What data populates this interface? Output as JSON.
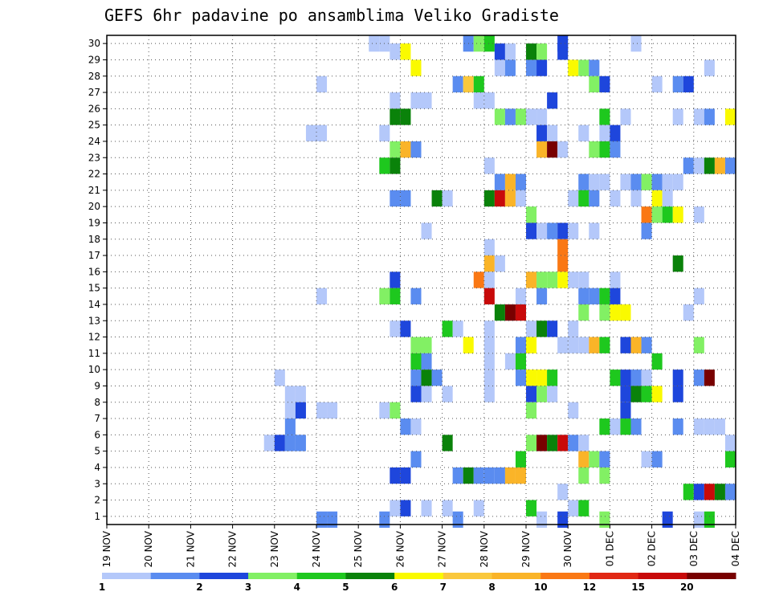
{
  "chart_data": {
    "type": "heatmap",
    "title": "GEFS 6hr padavine po ansamblima Veliko Gradiste",
    "xlabel": "",
    "ylabel": "",
    "x_tick_labels": [
      "19 NOV",
      "20 NOV",
      "21 NOV",
      "22 NOV",
      "23 NOV",
      "24 NOV",
      "25 NOV",
      "26 NOV",
      "27 NOV",
      "28 NOV",
      "29 NOV",
      "30 NOV",
      "01 DEC",
      "02 DEC",
      "03 DEC",
      "04 DEC"
    ],
    "y_tick_labels": [
      "1",
      "2",
      "3",
      "4",
      "5",
      "6",
      "7",
      "8",
      "9",
      "10",
      "11",
      "12",
      "13",
      "14",
      "15",
      "16",
      "17",
      "18",
      "19",
      "20",
      "21",
      "22",
      "23",
      "24",
      "25",
      "26",
      "27",
      "28",
      "29",
      "30"
    ],
    "x_range_days": [
      0,
      15
    ],
    "y_range_members": [
      0,
      30
    ],
    "grid": true,
    "legend": {
      "labels": [
        "1",
        "2",
        "3",
        "4",
        "5",
        "6",
        "7",
        "8",
        "10",
        "12",
        "15",
        "20"
      ],
      "colors": [
        "#b4c8fa",
        "#5a8cf0",
        "#1e46dc",
        "#82f064",
        "#1ec81e",
        "#0a820a",
        "#fafa00",
        "#fac83c",
        "#fab428",
        "#fa7814",
        "#e12814",
        "#c80a0a",
        "#780000"
      ]
    },
    "cells_note": "each cell = [day_offset_from_19NOV, member, class_index 1..13]",
    "cells": [
      [
        6.25,
        30,
        1
      ],
      [
        6.5,
        30,
        1
      ],
      [
        8.5,
        30,
        2
      ],
      [
        8.75,
        30,
        4
      ],
      [
        9,
        30,
        5
      ],
      [
        10.75,
        30,
        3
      ],
      [
        12.5,
        30,
        1
      ],
      [
        6.75,
        29,
        1
      ],
      [
        7,
        29,
        7
      ],
      [
        9.25,
        29,
        3
      ],
      [
        9.5,
        29,
        1
      ],
      [
        10,
        29,
        6
      ],
      [
        10.25,
        29,
        4
      ],
      [
        10.75,
        29,
        3
      ],
      [
        7.25,
        28,
        7
      ],
      [
        9.25,
        28,
        1
      ],
      [
        9.5,
        28,
        2
      ],
      [
        10,
        28,
        2
      ],
      [
        10.25,
        28,
        3
      ],
      [
        11,
        28,
        7
      ],
      [
        11.25,
        28,
        4
      ],
      [
        11.5,
        28,
        2
      ],
      [
        14.25,
        28,
        1
      ],
      [
        5,
        27,
        1
      ],
      [
        8.25,
        27,
        2
      ],
      [
        8.5,
        27,
        8
      ],
      [
        8.75,
        27,
        5
      ],
      [
        11.5,
        27,
        4
      ],
      [
        11.75,
        27,
        3
      ],
      [
        13,
        27,
        1
      ],
      [
        13.5,
        27,
        2
      ],
      [
        13.75,
        27,
        3
      ],
      [
        6.75,
        26,
        1
      ],
      [
        7.25,
        26,
        1
      ],
      [
        7.5,
        26,
        1
      ],
      [
        8.75,
        26,
        1
      ],
      [
        9,
        26,
        1
      ],
      [
        10.5,
        26,
        3
      ],
      [
        6.75,
        25,
        6
      ],
      [
        7,
        25,
        6
      ],
      [
        9.25,
        25,
        4
      ],
      [
        9.5,
        25,
        2
      ],
      [
        9.75,
        25,
        4
      ],
      [
        10,
        25,
        1
      ],
      [
        10.25,
        25,
        1
      ],
      [
        11.75,
        25,
        5
      ],
      [
        12.25,
        25,
        1
      ],
      [
        13.5,
        25,
        1
      ],
      [
        14,
        25,
        1
      ],
      [
        14.25,
        25,
        2
      ],
      [
        14.75,
        25,
        7
      ],
      [
        15,
        25,
        5
      ],
      [
        4.75,
        24,
        1
      ],
      [
        5,
        24,
        1
      ],
      [
        6.5,
        24,
        1
      ],
      [
        10.25,
        24,
        3
      ],
      [
        10.5,
        24,
        1
      ],
      [
        11.25,
        24,
        1
      ],
      [
        11.75,
        24,
        1
      ],
      [
        12,
        24,
        3
      ],
      [
        6.75,
        23,
        4
      ],
      [
        7,
        23,
        9
      ],
      [
        7.25,
        23,
        2
      ],
      [
        10.25,
        23,
        9
      ],
      [
        10.5,
        23,
        13
      ],
      [
        10.75,
        23,
        1
      ],
      [
        11.5,
        23,
        4
      ],
      [
        11.75,
        23,
        5
      ],
      [
        12,
        23,
        2
      ],
      [
        6.5,
        22,
        5
      ],
      [
        6.75,
        22,
        6
      ],
      [
        9,
        22,
        1
      ],
      [
        13.75,
        22,
        2
      ],
      [
        14,
        22,
        1
      ],
      [
        14.25,
        22,
        6
      ],
      [
        14.5,
        22,
        9
      ],
      [
        14.75,
        22,
        2
      ],
      [
        9.25,
        21,
        2
      ],
      [
        9.5,
        21,
        9
      ],
      [
        9.75,
        21,
        2
      ],
      [
        11.25,
        21,
        2
      ],
      [
        11.5,
        21,
        1
      ],
      [
        11.75,
        21,
        1
      ],
      [
        12.25,
        21,
        1
      ],
      [
        12.5,
        21,
        2
      ],
      [
        12.75,
        21,
        4
      ],
      [
        13,
        21,
        2
      ],
      [
        13.25,
        21,
        1
      ],
      [
        13.5,
        21,
        1
      ],
      [
        6.75,
        20,
        2
      ],
      [
        7,
        20,
        2
      ],
      [
        7.75,
        20,
        6
      ],
      [
        8,
        20,
        1
      ],
      [
        9,
        20,
        6
      ],
      [
        9.25,
        20,
        12
      ],
      [
        9.5,
        20,
        9
      ],
      [
        9.75,
        20,
        1
      ],
      [
        11,
        20,
        1
      ],
      [
        11.25,
        20,
        5
      ],
      [
        11.5,
        20,
        2
      ],
      [
        12,
        20,
        1
      ],
      [
        12.5,
        20,
        1
      ],
      [
        13,
        20,
        7
      ],
      [
        13.25,
        20,
        1
      ],
      [
        15,
        20,
        1
      ],
      [
        10,
        19,
        4
      ],
      [
        12.75,
        19,
        10
      ],
      [
        13,
        19,
        4
      ],
      [
        13.25,
        19,
        5
      ],
      [
        13.5,
        19,
        7
      ],
      [
        14,
        19,
        1
      ],
      [
        10,
        18,
        3
      ],
      [
        10.25,
        18,
        1
      ],
      [
        10.5,
        18,
        2
      ],
      [
        10.75,
        18,
        3
      ],
      [
        11,
        18,
        1
      ],
      [
        11.5,
        18,
        1
      ],
      [
        12.75,
        18,
        2
      ],
      [
        7.5,
        18,
        1
      ],
      [
        9,
        17,
        1
      ],
      [
        10.75,
        17,
        10
      ],
      [
        9,
        16,
        9
      ],
      [
        9.25,
        16,
        1
      ],
      [
        10.75,
        16,
        10
      ],
      [
        13.5,
        16,
        6
      ],
      [
        6.75,
        15,
        3
      ],
      [
        8.75,
        15,
        10
      ],
      [
        9,
        15,
        1
      ],
      [
        10,
        15,
        9
      ],
      [
        10.25,
        15,
        4
      ],
      [
        10.5,
        15,
        4
      ],
      [
        10.75,
        15,
        7
      ],
      [
        11,
        15,
        1
      ],
      [
        11.25,
        15,
        1
      ],
      [
        12,
        15,
        1
      ],
      [
        6.5,
        14,
        4
      ],
      [
        6.75,
        14,
        5
      ],
      [
        7.25,
        14,
        2
      ],
      [
        9,
        14,
        12
      ],
      [
        9.75,
        14,
        1
      ],
      [
        10.25,
        14,
        2
      ],
      [
        11.25,
        14,
        2
      ],
      [
        11.5,
        14,
        2
      ],
      [
        11.75,
        14,
        5
      ],
      [
        12,
        14,
        3
      ],
      [
        5,
        14,
        1
      ],
      [
        15,
        14,
        1
      ],
      [
        14,
        14,
        1
      ],
      [
        9.25,
        13,
        6
      ],
      [
        9.5,
        13,
        13
      ],
      [
        9.75,
        13,
        12
      ],
      [
        11.25,
        13,
        4
      ],
      [
        11.75,
        13,
        4
      ],
      [
        12,
        13,
        7
      ],
      [
        12.25,
        13,
        7
      ],
      [
        13.75,
        13,
        1
      ],
      [
        6.75,
        12,
        1
      ],
      [
        7,
        12,
        3
      ],
      [
        8,
        12,
        5
      ],
      [
        8.25,
        12,
        1
      ],
      [
        9,
        12,
        1
      ],
      [
        10,
        12,
        1
      ],
      [
        10.25,
        12,
        6
      ],
      [
        10.5,
        12,
        3
      ],
      [
        11,
        12,
        1
      ],
      [
        7.25,
        11,
        4
      ],
      [
        7.5,
        11,
        4
      ],
      [
        8.5,
        11,
        7
      ],
      [
        9,
        11,
        1
      ],
      [
        9.75,
        11,
        2
      ],
      [
        10,
        11,
        7
      ],
      [
        10.75,
        11,
        1
      ],
      [
        11,
        11,
        1
      ],
      [
        11.25,
        11,
        1
      ],
      [
        11.5,
        11,
        9
      ],
      [
        11.75,
        11,
        5
      ],
      [
        12.25,
        11,
        3
      ],
      [
        12.5,
        11,
        9
      ],
      [
        12.75,
        11,
        2
      ],
      [
        14,
        11,
        4
      ],
      [
        7.25,
        10,
        5
      ],
      [
        7.5,
        10,
        2
      ],
      [
        9,
        10,
        1
      ],
      [
        9.5,
        10,
        1
      ],
      [
        9.75,
        10,
        5
      ],
      [
        13,
        10,
        5
      ],
      [
        4,
        9,
        1
      ],
      [
        7.25,
        9,
        2
      ],
      [
        7.5,
        9,
        6
      ],
      [
        7.75,
        9,
        2
      ],
      [
        9,
        9,
        1
      ],
      [
        9.75,
        9,
        2
      ],
      [
        10,
        9,
        7
      ],
      [
        10.25,
        9,
        7
      ],
      [
        10.5,
        9,
        5
      ],
      [
        12,
        9,
        5
      ],
      [
        12.25,
        9,
        3
      ],
      [
        12.5,
        9,
        2
      ],
      [
        12.75,
        9,
        1
      ],
      [
        13.5,
        9,
        3
      ],
      [
        14,
        9,
        2
      ],
      [
        14.25,
        9,
        13
      ],
      [
        4.25,
        8,
        1
      ],
      [
        4.5,
        8,
        1
      ],
      [
        7.25,
        8,
        3
      ],
      [
        7.5,
        8,
        1
      ],
      [
        8,
        8,
        1
      ],
      [
        9,
        8,
        1
      ],
      [
        10,
        8,
        3
      ],
      [
        10.25,
        8,
        4
      ],
      [
        10.5,
        8,
        1
      ],
      [
        12.25,
        8,
        3
      ],
      [
        12.5,
        8,
        6
      ],
      [
        12.75,
        8,
        5
      ],
      [
        13,
        8,
        7
      ],
      [
        13.5,
        8,
        3
      ],
      [
        4.25,
        7,
        1
      ],
      [
        4.5,
        7,
        3
      ],
      [
        5,
        7,
        1
      ],
      [
        5.25,
        7,
        1
      ],
      [
        6.5,
        7,
        1
      ],
      [
        6.75,
        7,
        4
      ],
      [
        10,
        7,
        4
      ],
      [
        11,
        7,
        1
      ],
      [
        12.25,
        7,
        3
      ],
      [
        4.25,
        6,
        2
      ],
      [
        7,
        6,
        2
      ],
      [
        7.25,
        6,
        1
      ],
      [
        11.75,
        6,
        5
      ],
      [
        12,
        6,
        1
      ],
      [
        12.25,
        6,
        5
      ],
      [
        12.5,
        6,
        2
      ],
      [
        13.5,
        6,
        2
      ],
      [
        14,
        6,
        1
      ],
      [
        14.25,
        6,
        1
      ],
      [
        14.5,
        6,
        1
      ],
      [
        3.75,
        5,
        1
      ],
      [
        4,
        5,
        3
      ],
      [
        4.25,
        5,
        2
      ],
      [
        4.5,
        5,
        2
      ],
      [
        8,
        5,
        6
      ],
      [
        10,
        5,
        4
      ],
      [
        10.25,
        5,
        13
      ],
      [
        10.5,
        5,
        6
      ],
      [
        10.75,
        5,
        12
      ],
      [
        11,
        5,
        2
      ],
      [
        11.25,
        5,
        1
      ],
      [
        14.75,
        5,
        1
      ],
      [
        7.25,
        4,
        2
      ],
      [
        9.75,
        4,
        5
      ],
      [
        11.25,
        4,
        9
      ],
      [
        11.5,
        4,
        4
      ],
      [
        11.75,
        4,
        2
      ],
      [
        12.75,
        4,
        1
      ],
      [
        13,
        4,
        2
      ],
      [
        14.75,
        4,
        5
      ],
      [
        15.25,
        4,
        13
      ],
      [
        15.5,
        4,
        9
      ],
      [
        6.75,
        3,
        3
      ],
      [
        7,
        3,
        3
      ],
      [
        8.25,
        3,
        2
      ],
      [
        8.5,
        3,
        6
      ],
      [
        8.75,
        3,
        2
      ],
      [
        9,
        3,
        2
      ],
      [
        9.25,
        3,
        2
      ],
      [
        9.5,
        3,
        9
      ],
      [
        9.75,
        3,
        9
      ],
      [
        11.25,
        3,
        4
      ],
      [
        11.75,
        3,
        4
      ],
      [
        10.75,
        2,
        1
      ],
      [
        13.75,
        2,
        5
      ],
      [
        14,
        2,
        3
      ],
      [
        14.25,
        2,
        12
      ],
      [
        14.5,
        2,
        6
      ],
      [
        14.75,
        2,
        2
      ],
      [
        15,
        2,
        1
      ],
      [
        6.75,
        1,
        1
      ],
      [
        7,
        1,
        3
      ],
      [
        7.5,
        1,
        1
      ],
      [
        8,
        1,
        1
      ],
      [
        8.75,
        1,
        1
      ],
      [
        10,
        1,
        5
      ],
      [
        11,
        1,
        1
      ],
      [
        11.25,
        1,
        5
      ],
      [
        5,
        0.3,
        2
      ],
      [
        5.25,
        0.3,
        2
      ],
      [
        6.5,
        0.3,
        2
      ],
      [
        8.25,
        0.3,
        2
      ],
      [
        10.25,
        0.3,
        1
      ],
      [
        10.75,
        0.3,
        3
      ],
      [
        11.75,
        0.3,
        4
      ],
      [
        13.25,
        0.3,
        3
      ],
      [
        14,
        0.3,
        1
      ],
      [
        14.25,
        0.3,
        5
      ]
    ]
  }
}
